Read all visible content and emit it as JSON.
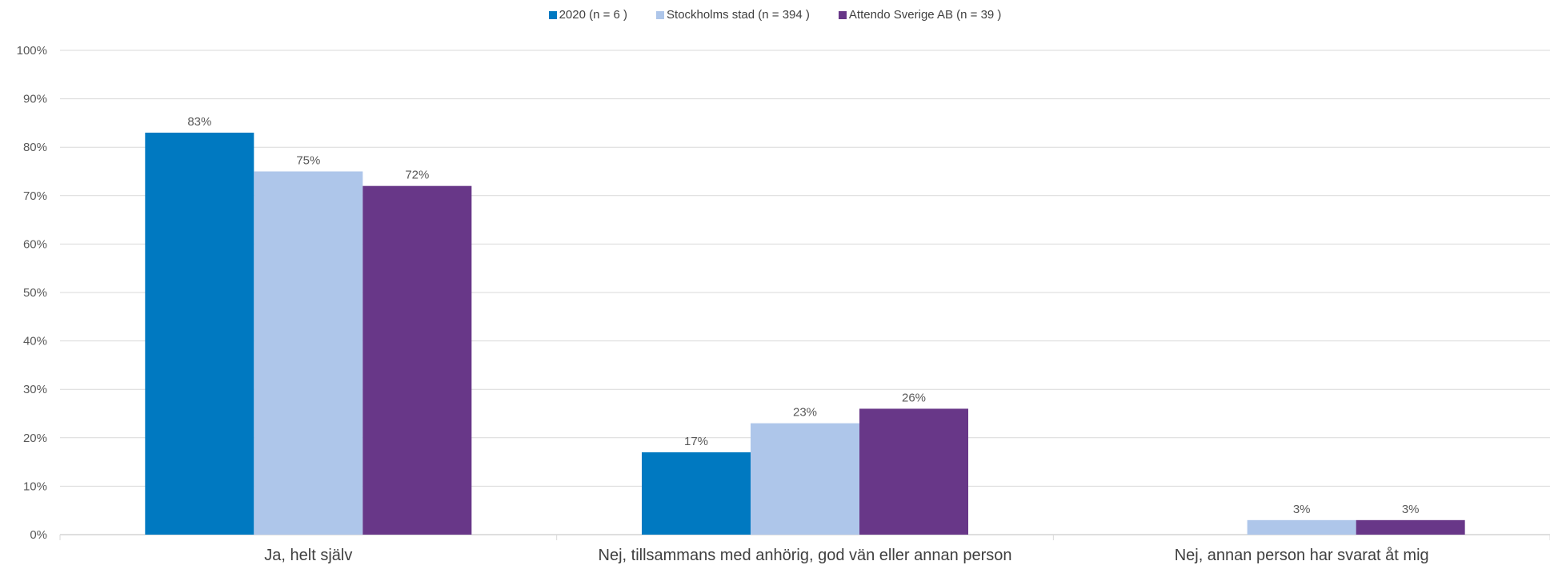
{
  "chart_data": {
    "type": "bar",
    "categories": [
      "Ja, helt själv",
      "Nej, tillsammans med anhörig, god vän eller annan person",
      "Nej, annan person har svarat åt mig"
    ],
    "series": [
      {
        "name": "2020 (n = 6 )",
        "color": "#0079C1",
        "values": [
          83,
          17,
          0
        ]
      },
      {
        "name": "Stockholms stad (n = 394 )",
        "color": "#AEC6EA",
        "values": [
          75,
          23,
          3
        ]
      },
      {
        "name": "Attendo Sverige AB (n = 39 )",
        "color": "#683788",
        "values": [
          72,
          26,
          3
        ]
      }
    ],
    "y_ticks": [
      "0%",
      "10%",
      "20%",
      "30%",
      "40%",
      "50%",
      "60%",
      "70%",
      "80%",
      "90%",
      "100%"
    ],
    "ylim": [
      0,
      100
    ],
    "value_suffix": "%",
    "legend_position": "top-center",
    "grid": true
  }
}
